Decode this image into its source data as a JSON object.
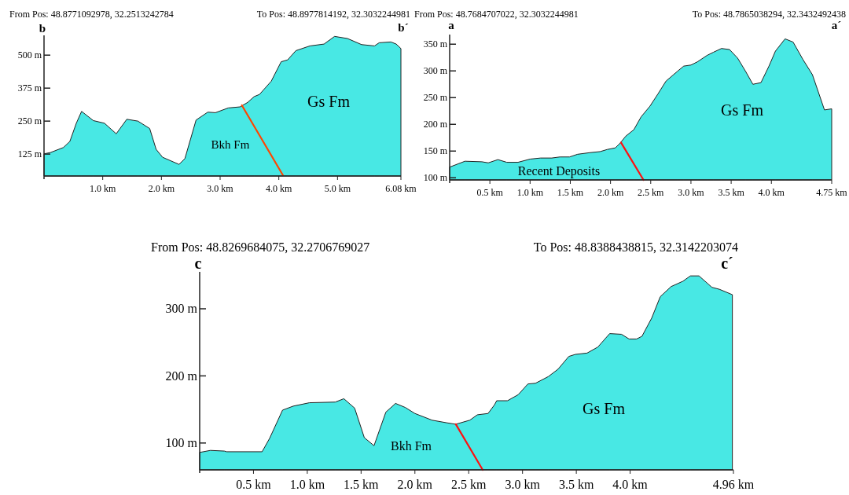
{
  "chart_data": [
    {
      "type": "area",
      "title": "From Pos: 48.8771092978, 32.2513242784",
      "subtitle": "To Pos: 48.8977814192, 32.3032244981",
      "xlim": [
        0,
        6.08
      ],
      "ylim": [
        42,
        575
      ],
      "xticks": [
        {
          "value": 1,
          "label": "1.0 km"
        },
        {
          "value": 2,
          "label": "2.0 km"
        },
        {
          "value": 3,
          "label": "3.0 km"
        },
        {
          "value": 4,
          "label": "4.0 km"
        },
        {
          "value": 5,
          "label": "5.0 km"
        },
        {
          "value": 6.08,
          "label": "6.08 km"
        }
      ],
      "yticks": [
        {
          "value": 125,
          "label": "125 m"
        },
        {
          "value": 250,
          "label": "250 m"
        },
        {
          "value": 375,
          "label": "375 m"
        },
        {
          "value": 500,
          "label": "500 m"
        }
      ],
      "series": [
        {
          "type": "area",
          "color": "#48e8e4",
          "x": [
            0,
            0.11,
            0.33,
            0.44,
            0.55,
            0.64,
            0.84,
            1.03,
            1.23,
            1.41,
            1.6,
            1.8,
            1.91,
            2.02,
            2.3,
            2.4,
            2.59,
            2.79,
            2.92,
            3.14,
            3.34,
            3.47,
            3.58,
            3.67,
            3.87,
            4.04,
            4.15,
            4.29,
            4.53,
            4.77,
            4.95,
            5.17,
            5.41,
            5.63,
            5.71,
            5.91,
            6,
            6.08
          ],
          "values": [
            126,
            131,
            150,
            173,
            242,
            287,
            252,
            242,
            202,
            257,
            250,
            222,
            143,
            113,
            86,
            108,
            254,
            284,
            282,
            300,
            304,
            321,
            343,
            351,
            401,
            475,
            482,
            517,
            535,
            542,
            571,
            563,
            540,
            535,
            547,
            550,
            542,
            525
          ]
        },
        {
          "type": "line",
          "color": "#ff4500",
          "x": [
            3.37,
            4.07
          ],
          "values": [
            310,
            45
          ]
        }
      ],
      "annotations": [
        "b",
        "b´",
        "Bkh Fm",
        "Gs Fm"
      ]
    },
    {
      "type": "area",
      "title": "From Pos: 48.7684707022, 32.3032244981",
      "subtitle": "To Pos: 48.7865038294, 32.3432492438",
      "xlim": [
        0,
        4.75
      ],
      "ylim": [
        96,
        368
      ],
      "xticks": [
        {
          "value": 0.5,
          "label": "0.5 km"
        },
        {
          "value": 1,
          "label": "1.0 km"
        },
        {
          "value": 1.5,
          "label": "1.5 km"
        },
        {
          "value": 2,
          "label": "2.0 km"
        },
        {
          "value": 2.5,
          "label": "2.5 km"
        },
        {
          "value": 3,
          "label": "3.0 km"
        },
        {
          "value": 3.5,
          "label": "3.5 km"
        },
        {
          "value": 4,
          "label": "4.0 km"
        },
        {
          "value": 4.75,
          "label": "4.75 km"
        }
      ],
      "yticks": [
        {
          "value": 100,
          "label": "100 m"
        },
        {
          "value": 150,
          "label": "150 m"
        },
        {
          "value": 200,
          "label": "200 m"
        },
        {
          "value": 250,
          "label": "250 m"
        },
        {
          "value": 300,
          "label": "300 m"
        },
        {
          "value": 350,
          "label": "350 m"
        }
      ],
      "series": [
        {
          "type": "area",
          "color": "#48e8e4",
          "x": [
            0,
            0.19,
            0.4,
            0.48,
            0.6,
            0.71,
            0.85,
            1,
            1.13,
            1.27,
            1.37,
            1.49,
            1.59,
            1.74,
            1.87,
            1.96,
            2.06,
            2.12,
            2.19,
            2.29,
            2.38,
            2.49,
            2.59,
            2.69,
            2.83,
            2.91,
            3,
            3.08,
            3.2,
            3.28,
            3.38,
            3.48,
            3.58,
            3.68,
            3.77,
            3.87,
            3.97,
            4.05,
            4.17,
            4.27,
            4.39,
            4.51,
            4.66,
            4.75
          ],
          "values": [
            120,
            131,
            130,
            128,
            134,
            129,
            129,
            135,
            137,
            137,
            139,
            139,
            144,
            147,
            149,
            153,
            156,
            165,
            178,
            190,
            214,
            234,
            257,
            281,
            299,
            309,
            311,
            317,
            329,
            335,
            342,
            340,
            324,
            299,
            275,
            278,
            309,
            337,
            360,
            354,
            322,
            293,
            227,
            229
          ]
        },
        {
          "type": "line",
          "color": "#ff1010",
          "x": [
            2.13,
            2.41
          ],
          "values": [
            166,
            96
          ]
        }
      ],
      "annotations": [
        "a",
        "a´",
        "Recent Deposits",
        "Gs Fm"
      ]
    },
    {
      "type": "area",
      "title": "From Pos: 48.8269684075, 32.2706769027",
      "subtitle": "To Pos: 48.8388438815, 32.3142203074",
      "xlim": [
        0,
        4.96
      ],
      "ylim": [
        60,
        355
      ],
      "xticks": [
        {
          "value": 0.5,
          "label": "0.5 km"
        },
        {
          "value": 1,
          "label": "1.0 km"
        },
        {
          "value": 1.5,
          "label": "1.5 km"
        },
        {
          "value": 2,
          "label": "2.0 km"
        },
        {
          "value": 2.5,
          "label": "2.5 km"
        },
        {
          "value": 3,
          "label": "3.0 km"
        },
        {
          "value": 3.5,
          "label": "3.5 km"
        },
        {
          "value": 4,
          "label": "4.0 km"
        },
        {
          "value": 4.96,
          "label": "4.96 km"
        }
      ],
      "yticks": [
        {
          "value": 100,
          "label": "100 m"
        },
        {
          "value": 200,
          "label": "200 m"
        },
        {
          "value": 300,
          "label": "300 m"
        }
      ],
      "series": [
        {
          "type": "area",
          "color": "#48e8e4",
          "x": [
            0,
            0.1,
            0.23,
            0.25,
            0.58,
            0.65,
            0.77,
            0.87,
            1.02,
            1.26,
            1.34,
            1.44,
            1.53,
            1.62,
            1.73,
            1.82,
            1.91,
            2,
            2.16,
            2.3,
            2.38,
            2.51,
            2.58,
            2.68,
            2.74,
            2.76,
            2.86,
            2.96,
            3.05,
            3.12,
            3.24,
            3.33,
            3.43,
            3.49,
            3.6,
            3.7,
            3.81,
            3.92,
            3.99,
            4.06,
            4.11,
            4.2,
            4.28,
            4.38,
            4.49,
            4.56,
            4.64,
            4.76,
            4.83,
            4.95
          ],
          "values": [
            86,
            89,
            88,
            87,
            87,
            107,
            149,
            155,
            160,
            161,
            166,
            152,
            108,
            96,
            146,
            159,
            153,
            144,
            134,
            130,
            128,
            134,
            142,
            144,
            157,
            163,
            163,
            172,
            188,
            189,
            199,
            210,
            229,
            232,
            234,
            243,
            263,
            262,
            255,
            255,
            259,
            286,
            318,
            333,
            341,
            349,
            349,
            332,
            329,
            321
          ]
        },
        {
          "type": "line",
          "color": "#ff1010",
          "x": [
            2.38,
            2.63
          ],
          "values": [
            128,
            60
          ]
        }
      ],
      "annotations": [
        "c",
        "c´",
        "Bkh Fm",
        "Gs Fm"
      ]
    }
  ]
}
